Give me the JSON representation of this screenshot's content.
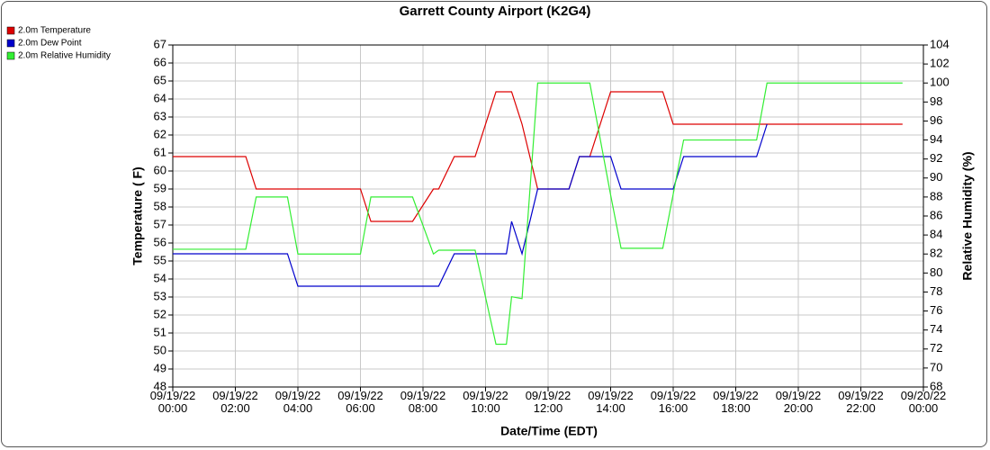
{
  "chart_data": {
    "type": "line",
    "title": "Garrett County Airport (K2G4)",
    "xlabel": "Date/Time (EDT)",
    "ylabel": "Temperature ( F)",
    "y2label": "Relative Humidity (%)",
    "x": [
      "09/19/22 00:00",
      "09/19/22 02:20",
      "09/19/22 02:40",
      "09/19/22 03:40",
      "09/19/22 04:00",
      "09/19/22 06:00",
      "09/19/22 06:20",
      "09/19/22 07:40",
      "09/19/22 08:20",
      "09/19/22 08:30",
      "09/19/22 09:00",
      "09/19/22 09:40",
      "09/19/22 10:20",
      "09/19/22 10:40",
      "09/19/22 10:50",
      "09/19/22 11:10",
      "09/19/22 11:40",
      "09/19/22 12:40",
      "09/19/22 13:00",
      "09/19/22 13:20",
      "09/19/22 14:00",
      "09/19/22 14:20",
      "09/19/22 15:40",
      "09/19/22 16:00",
      "09/19/22 16:20",
      "09/19/22 18:40",
      "09/19/22 19:00",
      "09/19/22 23:20"
    ],
    "series": [
      {
        "name": "2.0m Temperature",
        "color": "#dd0000",
        "values": [
          60.8,
          60.8,
          59,
          59,
          59,
          59,
          57.2,
          57.2,
          59,
          59,
          60.8,
          60.8,
          64.4,
          64.4,
          64.4,
          62.6,
          59,
          59,
          60.8,
          60.8,
          64.4,
          64.4,
          64.4,
          62.6,
          62.6,
          62.6,
          62.6,
          62.6
        ]
      },
      {
        "name": "2.0m Dew Point",
        "color": "#0000cc",
        "values": [
          55.4,
          55.4,
          55.4,
          55.4,
          53.6,
          53.6,
          53.6,
          53.6,
          53.6,
          53.6,
          55.4,
          55.4,
          55.4,
          55.4,
          57.2,
          55.4,
          59,
          59,
          60.8,
          60.8,
          60.8,
          59,
          59,
          59,
          60.8,
          60.8,
          62.6,
          null
        ]
      },
      {
        "name": "2.0m Relative Humidity",
        "color": "#33ee33",
        "axis": "y2",
        "values": [
          82.5,
          82.5,
          88,
          88,
          82,
          82,
          88,
          88,
          82,
          82.4,
          82.4,
          82.4,
          72.5,
          72.5,
          77.5,
          77.3,
          100,
          100,
          100,
          100,
          88.2,
          82.6,
          82.6,
          88.3,
          94,
          94,
          100,
          100
        ]
      }
    ],
    "xlim": [
      "09/19/22 00:00",
      "09/20/22 00:00"
    ],
    "xticks": [
      "09/19/22\n00:00",
      "09/19/22\n02:00",
      "09/19/22\n04:00",
      "09/19/22\n06:00",
      "09/19/22\n08:00",
      "09/19/22\n10:00",
      "09/19/22\n12:00",
      "09/19/22\n14:00",
      "09/19/22\n16:00",
      "09/19/22\n18:00",
      "09/19/22\n20:00",
      "09/19/22\n22:00",
      "09/20/22\n00:00"
    ],
    "ylim": [
      48,
      67
    ],
    "yticks": [
      48,
      49,
      50,
      51,
      52,
      53,
      54,
      55,
      56,
      57,
      58,
      59,
      60,
      61,
      62,
      63,
      64,
      65,
      66,
      67
    ],
    "y2lim": [
      68,
      104
    ],
    "y2ticks": [
      68,
      70,
      72,
      74,
      76,
      78,
      80,
      82,
      84,
      86,
      88,
      90,
      92,
      94,
      96,
      98,
      100,
      102,
      104
    ],
    "grid": true,
    "legend": "top-left"
  }
}
